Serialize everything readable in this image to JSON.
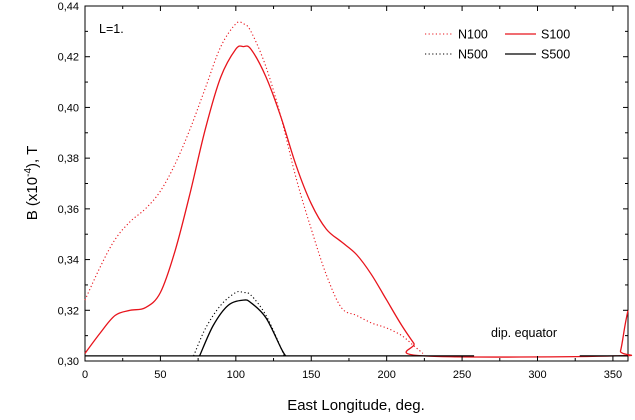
{
  "chart_data": {
    "type": "line",
    "xlabel": "East Longitude, deg.",
    "ylabel_parts": [
      "B (x10",
      "-4",
      "), T"
    ],
    "xlim": [
      0,
      360
    ],
    "ylim": [
      0.3,
      0.44
    ],
    "xticks": [
      0,
      50,
      100,
      150,
      200,
      250,
      300,
      350
    ],
    "xtick_labels": [
      "0",
      "50",
      "100",
      "150",
      "200",
      "250",
      "300",
      "350"
    ],
    "yticks": [
      0.3,
      0.32,
      0.34,
      0.36,
      0.38,
      0.4,
      0.42,
      0.44
    ],
    "ytick_labels": [
      "0,30",
      "0,32",
      "0,34",
      "0,36",
      "0,38",
      "0,40",
      "0,42",
      "0,44"
    ],
    "grid": false,
    "legend_position": "top-right",
    "annotations": {
      "shell": "L=1.",
      "equator": "dip. equator"
    },
    "series": [
      {
        "name": "N100",
        "color": "#e8141c",
        "style": "dotted",
        "points": [
          [
            0,
            0.324
          ],
          [
            10,
            0.337
          ],
          [
            20,
            0.348
          ],
          [
            30,
            0.355
          ],
          [
            40,
            0.36
          ],
          [
            50,
            0.367
          ],
          [
            60,
            0.378
          ],
          [
            70,
            0.392
          ],
          [
            80,
            0.408
          ],
          [
            90,
            0.424
          ],
          [
            100,
            0.433
          ],
          [
            105,
            0.433
          ],
          [
            110,
            0.43
          ],
          [
            120,
            0.416
          ],
          [
            130,
            0.396
          ],
          [
            140,
            0.372
          ],
          [
            150,
            0.352
          ],
          [
            160,
            0.334
          ],
          [
            170,
            0.321
          ],
          [
            180,
            0.318
          ],
          [
            190,
            0.315
          ],
          [
            200,
            0.313
          ],
          [
            210,
            0.31
          ],
          [
            218,
            0.306
          ],
          [
            224,
            0.303
          ]
        ]
      },
      {
        "name": "S100",
        "color": "#e8141c",
        "style": "solid",
        "points": [
          [
            0,
            0.303
          ],
          [
            10,
            0.311
          ],
          [
            20,
            0.318
          ],
          [
            30,
            0.32
          ],
          [
            40,
            0.321
          ],
          [
            50,
            0.327
          ],
          [
            60,
            0.344
          ],
          [
            70,
            0.367
          ],
          [
            80,
            0.392
          ],
          [
            90,
            0.412
          ],
          [
            100,
            0.423
          ],
          [
            105,
            0.424
          ],
          [
            110,
            0.423
          ],
          [
            120,
            0.412
          ],
          [
            130,
            0.396
          ],
          [
            140,
            0.377
          ],
          [
            150,
            0.362
          ],
          [
            160,
            0.352
          ],
          [
            170,
            0.347
          ],
          [
            180,
            0.342
          ],
          [
            190,
            0.334
          ],
          [
            200,
            0.324
          ],
          [
            210,
            0.314
          ],
          [
            218,
            0.307
          ],
          [
            224,
            0.302
          ],
          [
            352,
            0.302
          ],
          [
            355,
            0.304
          ],
          [
            358,
            0.314
          ],
          [
            360,
            0.32
          ]
        ]
      },
      {
        "name": "N500",
        "color": "#000000",
        "style": "dotted",
        "points": [
          [
            72,
            0.302
          ],
          [
            80,
            0.313
          ],
          [
            90,
            0.322
          ],
          [
            100,
            0.327
          ],
          [
            105,
            0.327
          ],
          [
            110,
            0.326
          ],
          [
            120,
            0.318
          ],
          [
            130,
            0.305
          ],
          [
            132,
            0.302
          ]
        ]
      },
      {
        "name": "S500",
        "color": "#000000",
        "style": "solid",
        "points": [
          [
            76,
            0.302
          ],
          [
            85,
            0.314
          ],
          [
            95,
            0.322
          ],
          [
            105,
            0.324
          ],
          [
            110,
            0.323
          ],
          [
            120,
            0.317
          ],
          [
            130,
            0.305
          ],
          [
            133,
            0.302
          ]
        ]
      },
      {
        "name": "",
        "color": "#000000",
        "style": "solid",
        "points": [
          [
            0,
            0.302
          ],
          [
            258,
            0.302
          ]
        ]
      },
      {
        "name": "",
        "color": "#000000",
        "style": "solid",
        "points": [
          [
            328,
            0.302
          ],
          [
            360,
            0.302
          ]
        ]
      }
    ]
  }
}
